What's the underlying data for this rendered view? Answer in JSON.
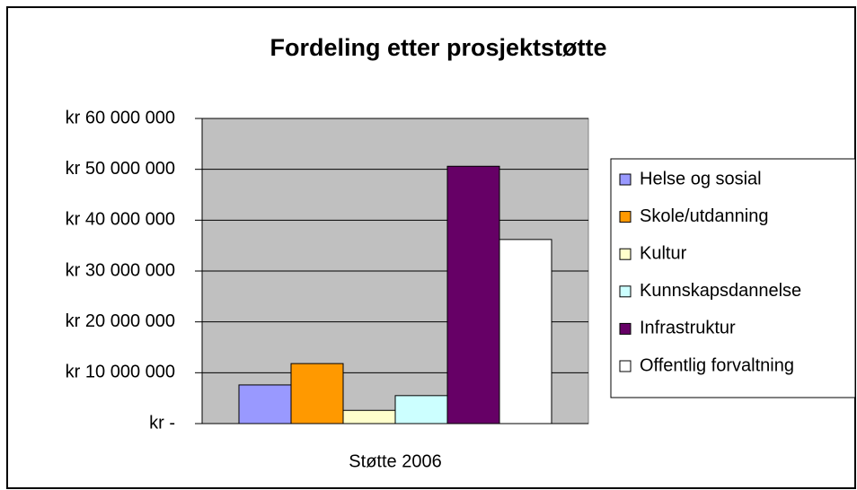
{
  "chart_data": {
    "type": "bar",
    "title": "Fordeling etter prosjektstøtte",
    "categories": [
      "Støtte 2006"
    ],
    "series": [
      {
        "name": "Helse og sosial",
        "color": "#9999ff",
        "values": [
          7600000
        ]
      },
      {
        "name": "Skole/utdanning",
        "color": "#ff9900",
        "values": [
          11800000
        ]
      },
      {
        "name": "Kultur",
        "color": "#ffffcc",
        "values": [
          2600000
        ]
      },
      {
        "name": "Kunnskapsdannelse",
        "color": "#ccffff",
        "values": [
          5500000
        ]
      },
      {
        "name": "Infrastruktur",
        "color": "#660066",
        "values": [
          50600000
        ]
      },
      {
        "name": "Offentlig forvaltning",
        "color": "#ffffff",
        "values": [
          36200000
        ]
      }
    ],
    "ylim": [
      0,
      60000000
    ],
    "yticks": [
      {
        "value": 0,
        "label": "kr -"
      },
      {
        "value": 10000000,
        "label": "kr 10 000 000"
      },
      {
        "value": 20000000,
        "label": "kr 20 000 000"
      },
      {
        "value": 30000000,
        "label": "kr 30 000 000"
      },
      {
        "value": 40000000,
        "label": "kr 40 000 000"
      },
      {
        "value": 50000000,
        "label": "kr 50 000 000"
      },
      {
        "value": 60000000,
        "label": "kr 60 000 000"
      }
    ],
    "grid": true,
    "legend": "right",
    "plot_background": "#c0c0c0"
  }
}
